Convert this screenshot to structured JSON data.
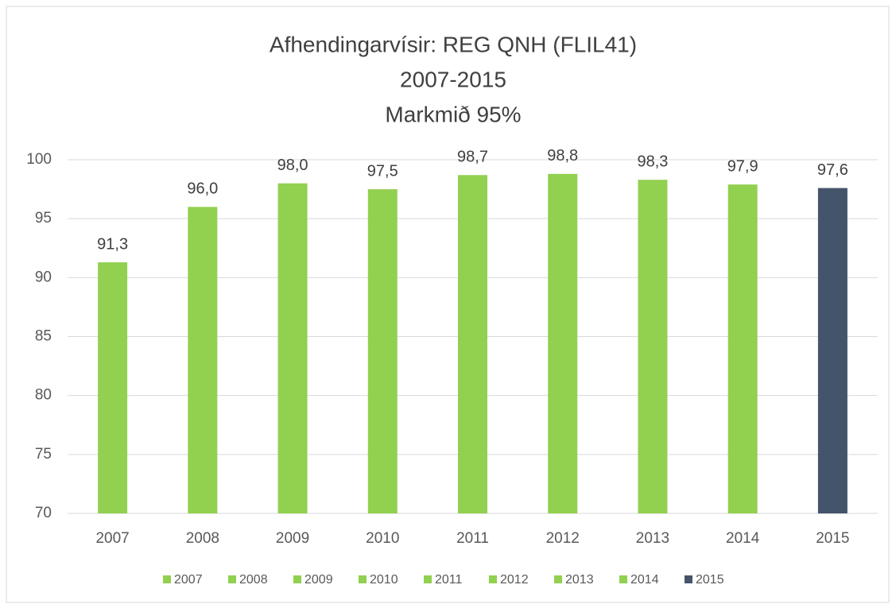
{
  "chart_data": {
    "type": "bar",
    "title": "Afhendingarvísir: REG QNH (FLIL41)",
    "subtitle": [
      "2007-2015",
      "Markmið 95%"
    ],
    "categories": [
      "2007",
      "2008",
      "2009",
      "2010",
      "2011",
      "2012",
      "2013",
      "2014",
      "2015"
    ],
    "values": [
      91.3,
      96.0,
      98.0,
      97.5,
      98.7,
      98.8,
      98.3,
      97.9,
      97.6
    ],
    "value_labels": [
      "91,3",
      "96,0",
      "98,0",
      "97,5",
      "98,7",
      "98,8",
      "98,3",
      "97,9",
      "97,6"
    ],
    "colors": [
      "#92d050",
      "#92d050",
      "#92d050",
      "#92d050",
      "#92d050",
      "#92d050",
      "#92d050",
      "#92d050",
      "#44546a"
    ],
    "ylim": [
      70,
      100
    ],
    "yticks": [
      70,
      75,
      80,
      85,
      90,
      95,
      100
    ],
    "grid": true,
    "legend": "bottom"
  }
}
